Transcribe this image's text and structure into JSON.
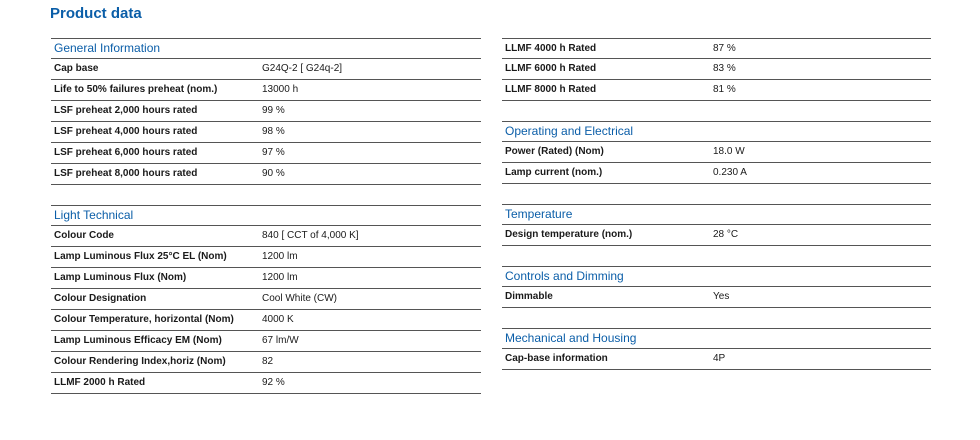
{
  "page_title": "Product data",
  "left": [
    {
      "title": "General Information",
      "rows": [
        {
          "label": "Cap base",
          "value": "G24Q-2 [ G24q-2]"
        },
        {
          "label": "Life to 50% failures preheat (nom.)",
          "value": "13000 h"
        },
        {
          "label": "LSF preheat 2,000 hours rated",
          "value": "99 %"
        },
        {
          "label": "LSF preheat 4,000 hours rated",
          "value": "98 %"
        },
        {
          "label": "LSF preheat 6,000 hours rated",
          "value": "97 %"
        },
        {
          "label": "LSF preheat 8,000 hours rated",
          "value": "90 %"
        }
      ]
    },
    {
      "title": "Light Technical",
      "rows": [
        {
          "label": "Colour Code",
          "value": "840 [ CCT of 4,000 K]"
        },
        {
          "label": "Lamp Luminous Flux 25°C EL (Nom)",
          "value": "1200 lm"
        },
        {
          "label": "Lamp Luminous Flux (Nom)",
          "value": "1200 lm"
        },
        {
          "label": "Colour Designation",
          "value": "Cool White (CW)"
        },
        {
          "label": "Colour Temperature, horizontal (Nom)",
          "value": "4000 K"
        },
        {
          "label": "Lamp Luminous Efficacy EM (Nom)",
          "value": "67 lm/W"
        },
        {
          "label": "Colour Rendering Index,horiz (Nom)",
          "value": "82"
        },
        {
          "label": "LLMF 2000 h Rated",
          "value": "92 %"
        }
      ]
    }
  ],
  "right_top_rows": [
    {
      "label": "LLMF 4000 h Rated",
      "value": "87 %"
    },
    {
      "label": "LLMF 6000 h Rated",
      "value": "83 %"
    },
    {
      "label": "LLMF 8000 h Rated",
      "value": "81 %"
    }
  ],
  "right": [
    {
      "title": "Operating and Electrical",
      "rows": [
        {
          "label": "Power (Rated) (Nom)",
          "value": "18.0 W"
        },
        {
          "label": "Lamp current (nom.)",
          "value": "0.230 A"
        }
      ]
    },
    {
      "title": "Temperature",
      "rows": [
        {
          "label": "Design temperature (nom.)",
          "value": "28 °C"
        }
      ]
    },
    {
      "title": "Controls and Dimming",
      "rows": [
        {
          "label": "Dimmable",
          "value": "Yes"
        }
      ]
    },
    {
      "title": "Mechanical and Housing",
      "rows": [
        {
          "label": "Cap-base information",
          "value": "4P"
        }
      ]
    }
  ]
}
